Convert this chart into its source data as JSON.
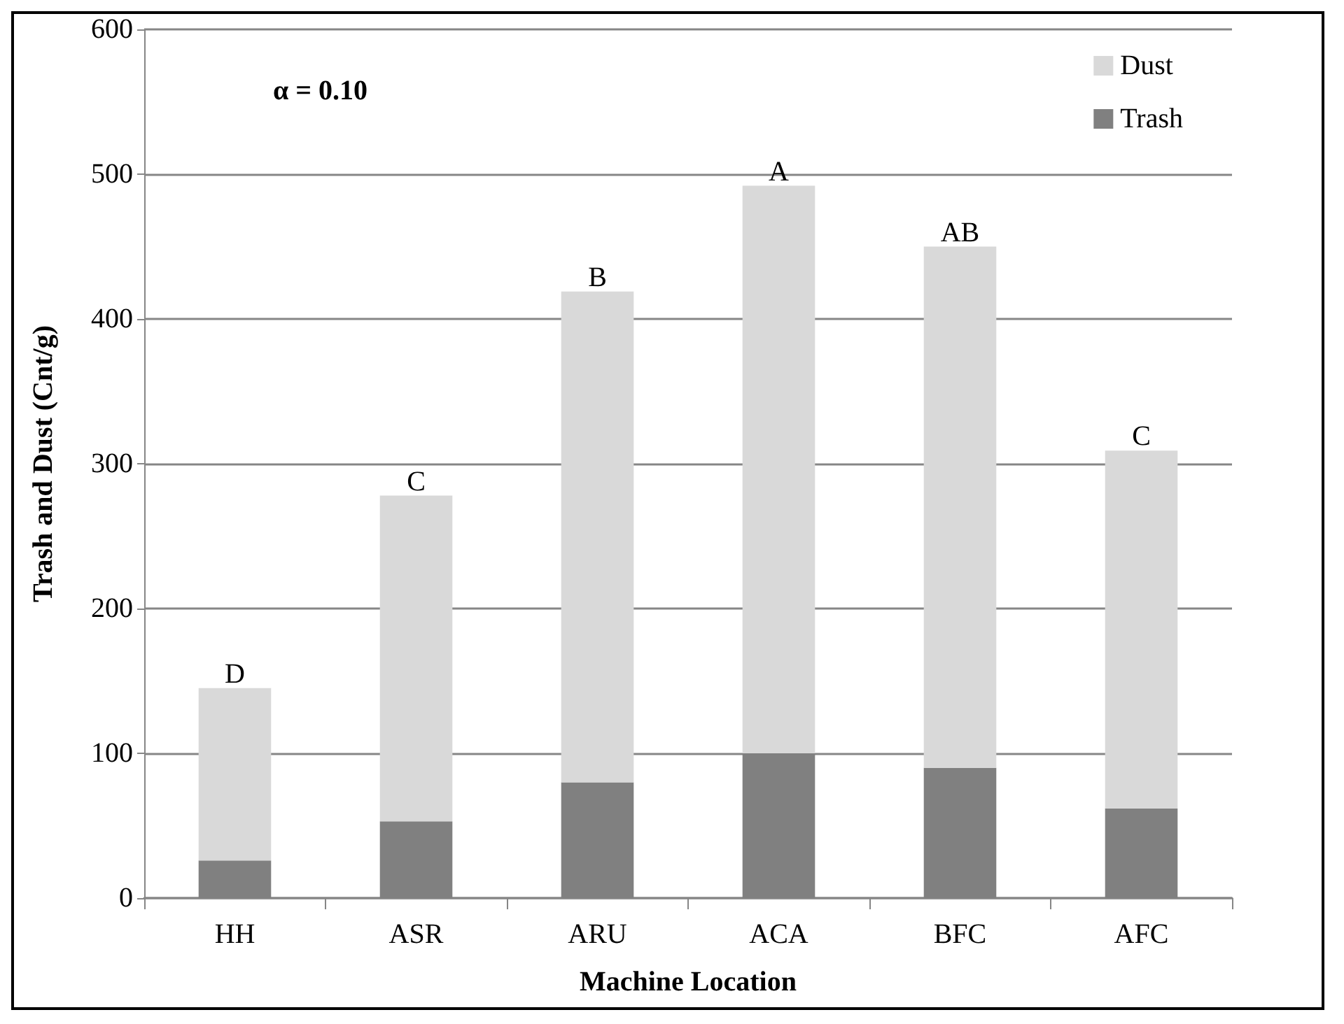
{
  "chart_data": {
    "type": "bar",
    "stacked": true,
    "xlabel": "Machine Location",
    "ylabel": "Trash and Dust (Cnt/g)",
    "categories": [
      "HH",
      "ASR",
      "ARU",
      "ACA",
      "BFC",
      "AFC"
    ],
    "series": [
      {
        "name": "Trash",
        "color": "#808080",
        "values": [
          26,
          53,
          80,
          100,
          90,
          62
        ]
      },
      {
        "name": "Dust",
        "color": "#d9d9d9",
        "values": [
          119,
          225,
          339,
          392,
          360,
          247
        ]
      }
    ],
    "ylim": [
      0,
      600
    ],
    "yticks": [
      0,
      100,
      200,
      300,
      400,
      500,
      600
    ],
    "grid": "y",
    "legend": "top right",
    "annotations": [
      "α = 0.10",
      {
        "text": "D",
        "x": "HH",
        "y": 145
      },
      {
        "text": "C",
        "x": "ASR",
        "y": 278
      },
      {
        "text": "B",
        "x": "ARU",
        "y": 419
      },
      {
        "text": "A",
        "x": "ACA",
        "y": 492
      },
      {
        "text": "AB",
        "x": "BFC",
        "y": 450
      },
      {
        "text": "C",
        "x": "AFC",
        "y": 309
      }
    ]
  }
}
